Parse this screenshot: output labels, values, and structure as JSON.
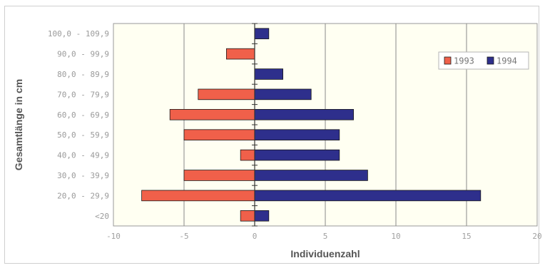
{
  "chart_data": {
    "type": "bar",
    "orientation": "horizontal",
    "categories": [
      "<20",
      "20,0 - 29,9",
      "30,0 - 39,9",
      "40,0 - 49,9",
      "50,0 - 59,9",
      "60,0 - 69,9",
      "70,0 - 79,9",
      "80,0 - 89,9",
      "90,0 - 99,9",
      "100,0 - 109,9"
    ],
    "series": [
      {
        "name": "1993",
        "values": [
          -1,
          -8,
          -5,
          -1,
          -5,
          -6,
          -4,
          0,
          -2,
          0
        ],
        "color": "#f0604a"
      },
      {
        "name": "1994",
        "values": [
          1,
          16,
          8,
          6,
          6,
          7,
          4,
          2,
          0,
          1
        ],
        "color": "#2e2f8c"
      }
    ],
    "xlabel": "Individuenzahl",
    "ylabel": "Gesamtlänge in cm",
    "xlim": [
      -10,
      20
    ],
    "xticks": [
      -10,
      -5,
      0,
      5,
      10,
      15,
      20
    ],
    "grid": "vertical",
    "legend": "top-right",
    "plot_background": "#fffff2"
  }
}
